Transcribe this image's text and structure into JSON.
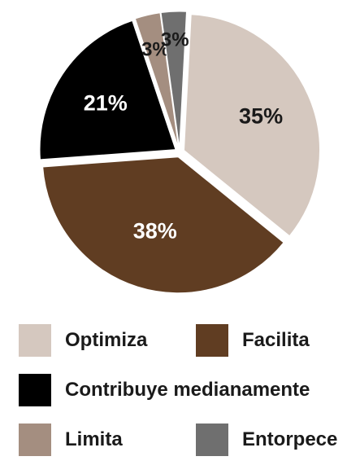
{
  "chart_data": {
    "type": "pie",
    "slices": [
      {
        "name": "Optimiza",
        "value": 35,
        "label": "35%",
        "color": "#d5c8bf",
        "label_color": "#1a1a1a"
      },
      {
        "name": "Facilita",
        "value": 38,
        "label": "38%",
        "color": "#603d22",
        "label_color": "#ffffff"
      },
      {
        "name": "Contribuye medianamente",
        "value": 21,
        "label": "21%",
        "color": "#000000",
        "label_color": "#ffffff"
      },
      {
        "name": "Limita",
        "value": 3,
        "label": "3%",
        "color": "#a48e80",
        "label_color": "#1a1a1a"
      },
      {
        "name": "Entorpece",
        "value": 3,
        "label": "3%",
        "color": "#6f6f6f",
        "label_color": "#1a1a1a"
      }
    ],
    "legend": {
      "placement": "bottom",
      "entries": [
        {
          "label": "Optimiza",
          "color": "#d5c8bf"
        },
        {
          "label": "Facilita",
          "color": "#603d22"
        },
        {
          "label": "Contribuye medianamente",
          "color": "#000000"
        },
        {
          "label": "Limita",
          "color": "#a48e80"
        },
        {
          "label": "Entorpece",
          "color": "#6f6f6f"
        }
      ]
    }
  }
}
